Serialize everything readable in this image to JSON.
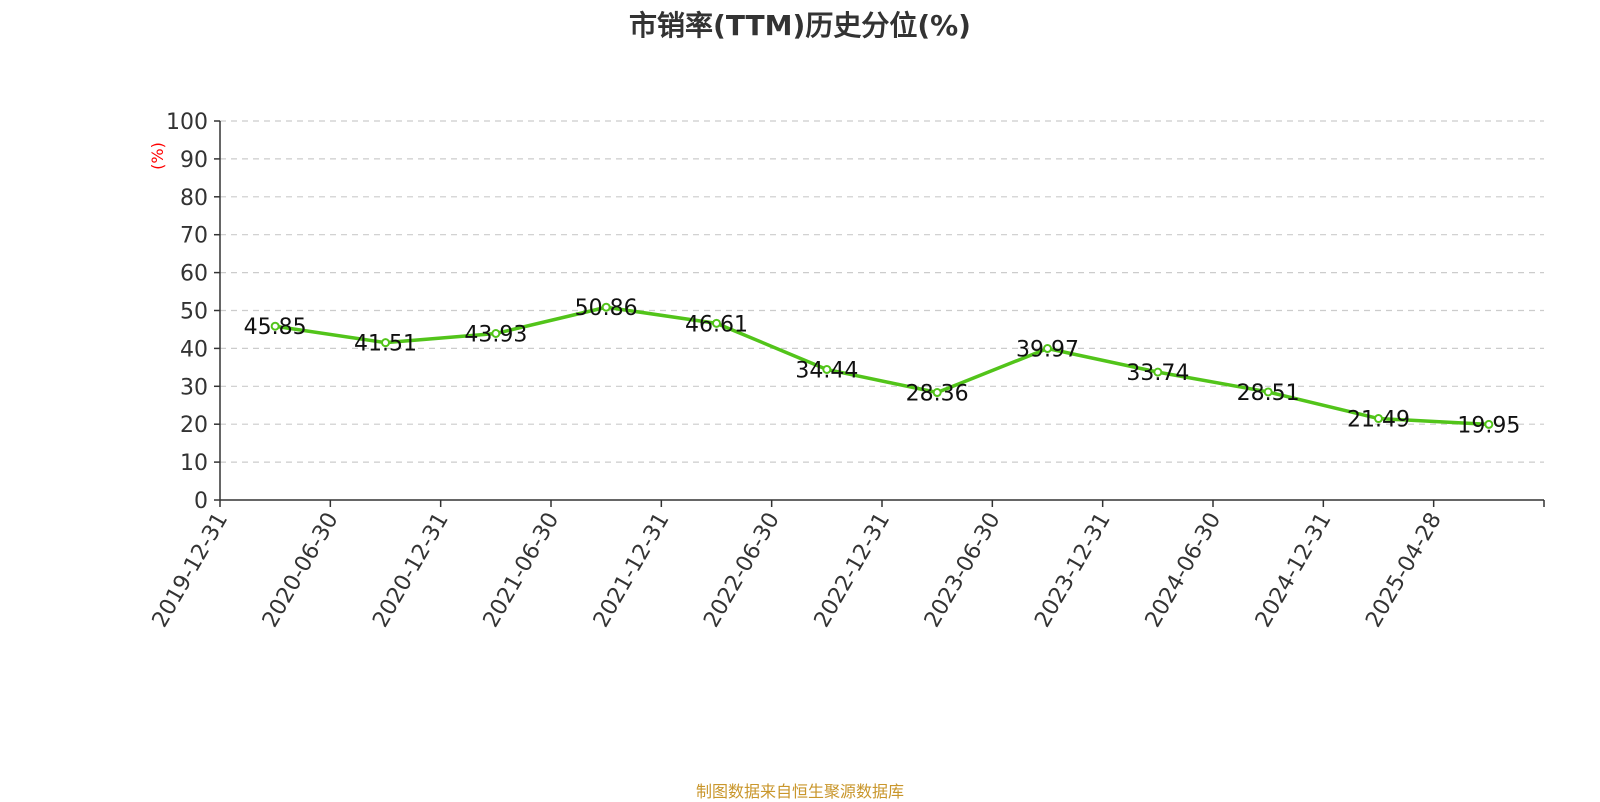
{
  "chart_data": {
    "type": "line",
    "title": "市销率(TTM)历史分位(%)",
    "ylabel": "(%)",
    "xlabel": "",
    "ylim": [
      0,
      100
    ],
    "yticks": [
      0,
      10,
      20,
      30,
      40,
      50,
      60,
      70,
      80,
      90,
      100
    ],
    "grid": true,
    "categories": [
      "2019-12-31",
      "2020-06-30",
      "2020-12-31",
      "2021-06-30",
      "2021-12-31",
      "2022-06-30",
      "2022-12-31",
      "2023-06-30",
      "2023-12-31",
      "2024-06-30",
      "2024-12-31",
      "2025-04-28"
    ],
    "series": [
      {
        "values": [
          45.85,
          41.51,
          43.93,
          50.86,
          46.61,
          34.44,
          28.36,
          39.97,
          33.74,
          28.51,
          21.49,
          19.95
        ],
        "labels": [
          "45.85",
          "41.51",
          "43.93",
          "50.86",
          "46.61",
          "34.44",
          "28.36",
          "39.97",
          "33.74",
          "28.51",
          "21.49",
          "19.95"
        ],
        "color": "#52c41a"
      }
    ]
  },
  "footer": {
    "source": "制图数据来自恒生聚源数据库"
  },
  "colors": {
    "line": "#52c41a",
    "ylabel": "#ff0000",
    "source": "#c9962b",
    "title": "#333333"
  }
}
